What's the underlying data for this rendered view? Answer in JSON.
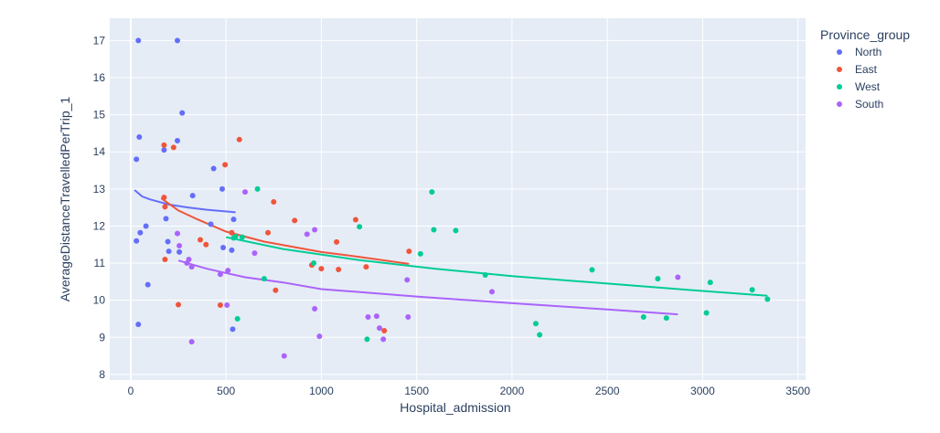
{
  "chart_data": {
    "type": "scatter",
    "title": "",
    "xlabel": "Hospital_admission",
    "ylabel": "AverageDistanceTravelledPerTrip_1",
    "xlim": [
      -110,
      3540
    ],
    "ylim": [
      7.85,
      17.6
    ],
    "x_ticks": [
      0,
      500,
      1000,
      1500,
      2000,
      2500,
      3000,
      3500
    ],
    "x_tick_labels": [
      "0",
      "500",
      "1000",
      "1500",
      "2000",
      "2500",
      "3000",
      "3500"
    ],
    "y_ticks": [
      8,
      9,
      10,
      11,
      12,
      13,
      14,
      15,
      16,
      17
    ],
    "y_tick_labels": [
      "8",
      "9",
      "10",
      "11",
      "12",
      "13",
      "14",
      "15",
      "16",
      "17"
    ],
    "grid": true,
    "legend": {
      "title": "Province_group",
      "placement": "right"
    },
    "plot_background": "#E5ECF6",
    "series": [
      {
        "name": "North",
        "color": "#636EFA",
        "points": [
          [
            40,
            17.0
          ],
          [
            245,
            17.0
          ],
          [
            270,
            15.05
          ],
          [
            45,
            14.4
          ],
          [
            245,
            14.3
          ],
          [
            175,
            14.05
          ],
          [
            30,
            13.8
          ],
          [
            435,
            13.55
          ],
          [
            325,
            12.82
          ],
          [
            480,
            13.0
          ],
          [
            185,
            12.2
          ],
          [
            420,
            12.05
          ],
          [
            80,
            12.0
          ],
          [
            540,
            12.18
          ],
          [
            50,
            11.82
          ],
          [
            30,
            11.6
          ],
          [
            195,
            11.58
          ],
          [
            485,
            11.42
          ],
          [
            530,
            11.35
          ],
          [
            200,
            11.32
          ],
          [
            255,
            11.3
          ],
          [
            90,
            10.42
          ],
          [
            535,
            9.22
          ],
          [
            40,
            9.35
          ]
        ],
        "trend": [
          [
            20,
            12.97
          ],
          [
            60,
            12.8
          ],
          [
            100,
            12.72
          ],
          [
            200,
            12.58
          ],
          [
            300,
            12.5
          ],
          [
            400,
            12.44
          ],
          [
            550,
            12.37
          ]
        ]
      },
      {
        "name": "East",
        "color": "#EF553B",
        "points": [
          [
            570,
            14.33
          ],
          [
            175,
            14.18
          ],
          [
            225,
            14.12
          ],
          [
            495,
            13.65
          ],
          [
            750,
            12.65
          ],
          [
            175,
            12.77
          ],
          [
            180,
            12.52
          ],
          [
            860,
            12.15
          ],
          [
            1180,
            12.17
          ],
          [
            720,
            11.82
          ],
          [
            530,
            11.82
          ],
          [
            365,
            11.63
          ],
          [
            395,
            11.5
          ],
          [
            1080,
            11.57
          ],
          [
            1460,
            11.32
          ],
          [
            180,
            11.1
          ],
          [
            1235,
            10.9
          ],
          [
            950,
            10.95
          ],
          [
            1000,
            10.85
          ],
          [
            1090,
            10.83
          ],
          [
            760,
            10.27
          ],
          [
            250,
            9.88
          ],
          [
            470,
            9.87
          ],
          [
            1330,
            9.18
          ]
        ],
        "trend": [
          [
            160,
            12.75
          ],
          [
            250,
            12.42
          ],
          [
            350,
            12.18
          ],
          [
            500,
            11.85
          ],
          [
            700,
            11.58
          ],
          [
            1000,
            11.3
          ],
          [
            1200,
            11.17
          ],
          [
            1460,
            10.98
          ]
        ]
      },
      {
        "name": "West",
        "color": "#00CC96",
        "points": [
          [
            665,
            13.0
          ],
          [
            1580,
            12.92
          ],
          [
            1200,
            11.98
          ],
          [
            1590,
            11.9
          ],
          [
            1705,
            11.88
          ],
          [
            550,
            11.72
          ],
          [
            585,
            11.7
          ],
          [
            540,
            11.68
          ],
          [
            1520,
            11.25
          ],
          [
            960,
            11.0
          ],
          [
            2420,
            10.82
          ],
          [
            1860,
            10.68
          ],
          [
            700,
            10.58
          ],
          [
            2765,
            10.58
          ],
          [
            3040,
            10.48
          ],
          [
            3260,
            10.28
          ],
          [
            3340,
            10.03
          ],
          [
            3020,
            9.66
          ],
          [
            2690,
            9.55
          ],
          [
            2810,
            9.52
          ],
          [
            560,
            9.5
          ],
          [
            2125,
            9.37
          ],
          [
            2145,
            9.07
          ],
          [
            1240,
            8.95
          ]
        ],
        "trend": [
          [
            500,
            11.7
          ],
          [
            800,
            11.38
          ],
          [
            1200,
            11.08
          ],
          [
            1600,
            10.85
          ],
          [
            2000,
            10.65
          ],
          [
            2500,
            10.45
          ],
          [
            3000,
            10.25
          ],
          [
            3340,
            10.12
          ]
        ]
      },
      {
        "name": "South",
        "color": "#AB63FA",
        "points": [
          [
            600,
            12.92
          ],
          [
            965,
            11.9
          ],
          [
            925,
            11.78
          ],
          [
            245,
            11.8
          ],
          [
            255,
            11.47
          ],
          [
            650,
            11.27
          ],
          [
            305,
            11.1
          ],
          [
            295,
            11.0
          ],
          [
            320,
            10.9
          ],
          [
            510,
            10.8
          ],
          [
            470,
            10.7
          ],
          [
            2870,
            10.62
          ],
          [
            1450,
            10.55
          ],
          [
            1895,
            10.23
          ],
          [
            505,
            9.87
          ],
          [
            965,
            9.77
          ],
          [
            1245,
            9.55
          ],
          [
            1290,
            9.57
          ],
          [
            1455,
            9.55
          ],
          [
            1305,
            9.25
          ],
          [
            990,
            9.03
          ],
          [
            1325,
            8.95
          ],
          [
            320,
            8.88
          ],
          [
            805,
            8.5
          ]
        ],
        "trend": [
          [
            250,
            11.07
          ],
          [
            400,
            10.85
          ],
          [
            600,
            10.62
          ],
          [
            800,
            10.48
          ],
          [
            1000,
            10.3
          ],
          [
            1500,
            10.1
          ],
          [
            2000,
            9.92
          ],
          [
            2500,
            9.75
          ],
          [
            2870,
            9.62
          ]
        ]
      }
    ]
  }
}
